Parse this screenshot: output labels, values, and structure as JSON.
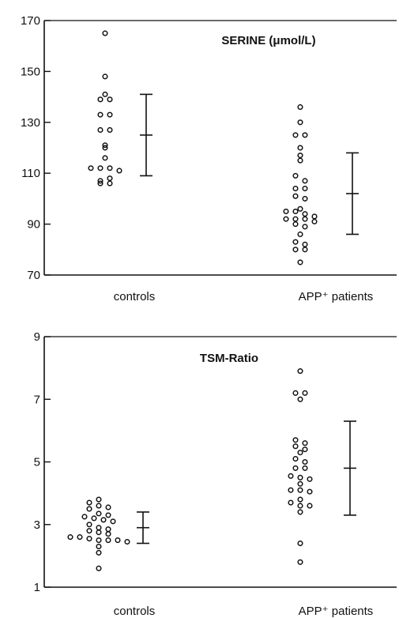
{
  "chart_data": [
    {
      "type": "scatter",
      "title": "SERINE (μmol/L)",
      "ylim": [
        70,
        170
      ],
      "yticks": [
        70,
        90,
        110,
        130,
        150,
        170
      ],
      "ytick_labels": [
        "70",
        "90",
        "110",
        "130",
        "150",
        "170"
      ],
      "categories": [
        "controls",
        "APP⁺ patients"
      ],
      "points": [
        [
          165,
          148,
          141,
          139,
          139,
          133,
          133,
          127,
          127,
          120,
          121,
          116,
          112,
          112,
          112,
          111,
          107,
          106,
          106,
          108
        ],
        [
          136,
          130,
          125,
          125,
          120,
          117,
          115,
          109,
          107,
          104,
          104,
          101,
          100,
          96,
          95,
          95,
          94,
          93,
          92,
          92,
          92,
          91,
          90,
          89,
          86,
          83,
          82,
          80,
          80,
          75
        ]
      ],
      "mean_sd": [
        {
          "mean": 125,
          "low": 109,
          "high": 141
        },
        {
          "mean": 102,
          "low": 86,
          "high": 118
        }
      ],
      "grid": false
    },
    {
      "type": "scatter",
      "title": "TSM-Ratio",
      "ylim": [
        1,
        9
      ],
      "yticks": [
        1,
        3,
        5,
        7,
        9
      ],
      "ytick_labels": [
        "1",
        "3",
        "5",
        "7",
        "9"
      ],
      "categories": [
        "controls",
        "APP⁺ patients"
      ],
      "points": [
        [
          3.8,
          3.7,
          3.6,
          3.55,
          3.5,
          3.35,
          3.3,
          3.25,
          3.2,
          3.15,
          3.1,
          3.0,
          2.9,
          2.85,
          2.8,
          2.75,
          2.7,
          2.6,
          2.6,
          2.55,
          2.5,
          2.5,
          2.5,
          2.45,
          2.3,
          2.1,
          1.6
        ],
        [
          7.9,
          7.2,
          7.2,
          7.0,
          5.7,
          5.6,
          5.5,
          5.4,
          5.3,
          5.1,
          5.0,
          4.8,
          4.8,
          4.55,
          4.5,
          4.45,
          4.3,
          4.1,
          4.1,
          4.05,
          3.8,
          3.7,
          3.6,
          3.6,
          3.4,
          2.4,
          1.8
        ]
      ],
      "mean_sd": [
        {
          "mean": 2.9,
          "low": 2.4,
          "high": 3.4
        },
        {
          "mean": 4.8,
          "low": 3.3,
          "high": 6.3
        }
      ],
      "grid": false
    }
  ]
}
